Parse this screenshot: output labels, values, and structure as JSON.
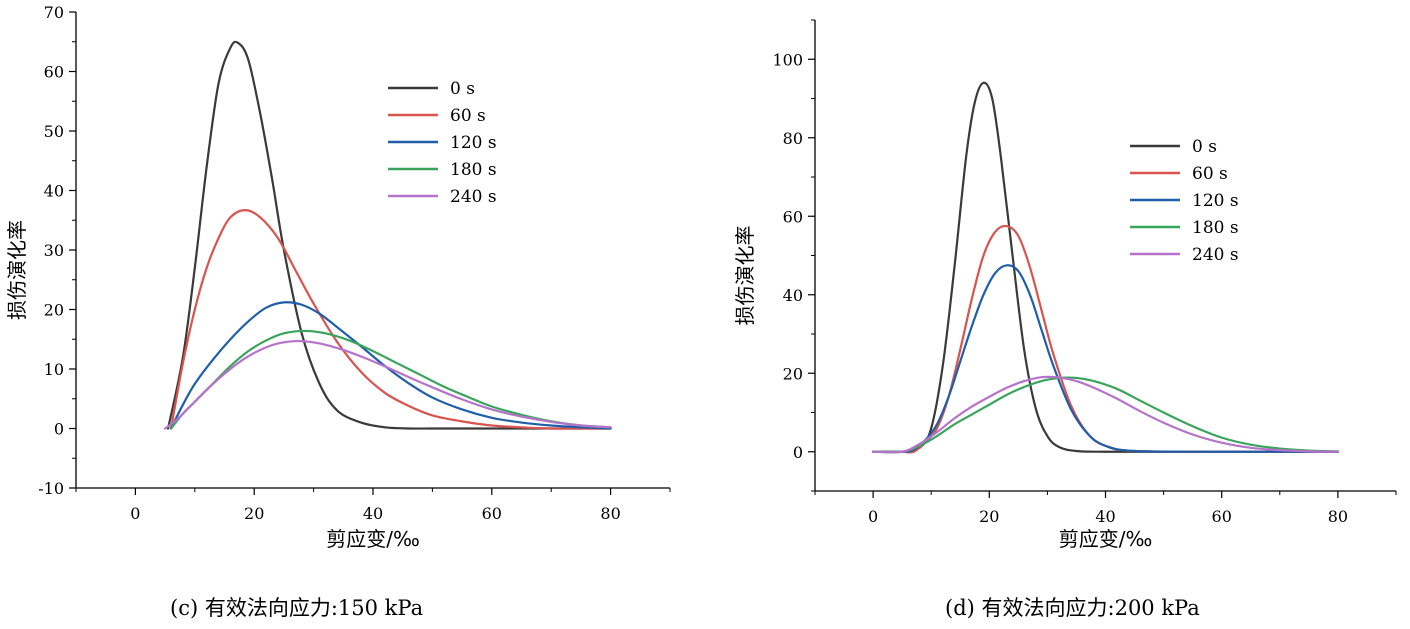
{
  "captions": {
    "c": "(c) 有效法向应力:150 kPa",
    "d": "(d) 有效法向应力:200 kPa"
  },
  "chart_data": [
    {
      "type": "line",
      "panel": "c",
      "xlabel": "剪应变/‰",
      "ylabel": "损伤演化率",
      "xlim": [
        -10,
        90
      ],
      "ylim": [
        -10,
        70
      ],
      "xticks": [
        0,
        20,
        40,
        60,
        80
      ],
      "yticks": [
        -10,
        0,
        10,
        20,
        30,
        40,
        50,
        60,
        70
      ],
      "grid": false,
      "legend_position": "top-right",
      "series": [
        {
          "name": "0 s",
          "color": "#3a3a3a",
          "x": [
            5.5,
            8,
            10,
            12,
            14,
            16,
            17.3,
            19,
            21,
            23,
            25,
            28,
            31,
            34,
            38,
            42,
            46,
            50,
            60,
            70,
            80
          ],
          "y": [
            0,
            12,
            27,
            44,
            58,
            64,
            64.8,
            62,
            53,
            42,
            30,
            16,
            7.5,
            3,
            1,
            0.2,
            0,
            0,
            0,
            0,
            0
          ]
        },
        {
          "name": "60 s",
          "color": "#d9534f",
          "x": [
            6,
            8,
            10,
            12,
            14,
            16,
            18.5,
            21,
            24,
            27,
            30,
            34,
            38,
            42,
            46,
            50,
            55,
            60,
            65,
            70,
            80
          ],
          "y": [
            0,
            11,
            20,
            27,
            32,
            35.5,
            36.7,
            35.5,
            32,
            26.5,
            21,
            14.5,
            9.5,
            6,
            3.8,
            2.2,
            1.2,
            0.5,
            0.2,
            0,
            0
          ]
        },
        {
          "name": "120 s",
          "color": "#1f5ea8",
          "x": [
            6,
            8,
            10,
            13,
            16,
            19,
            22,
            25,
            28,
            31,
            34,
            38,
            42,
            46,
            50,
            55,
            60,
            65,
            70,
            75,
            80
          ],
          "y": [
            0,
            4,
            7.5,
            11.5,
            15,
            18,
            20.3,
            21.2,
            20.8,
            19.3,
            17,
            13.8,
            10.5,
            7.6,
            5.2,
            3.2,
            1.8,
            1,
            0.5,
            0.2,
            0
          ]
        },
        {
          "name": "180 s",
          "color": "#3aa35c",
          "x": [
            6,
            8,
            10,
            13,
            16,
            19,
            22,
            25,
            28.5,
            32,
            36,
            40,
            44,
            48,
            52,
            56,
            60,
            65,
            70,
            75,
            80
          ],
          "y": [
            0,
            2.5,
            4.5,
            7.5,
            10.5,
            13,
            14.8,
            16,
            16.4,
            16,
            14.8,
            13,
            11,
            9,
            7,
            5.3,
            3.7,
            2.3,
            1.2,
            0.5,
            0.2
          ]
        },
        {
          "name": "240 s",
          "color": "#b673cc",
          "x": [
            5,
            7,
            9,
            12,
            15,
            18,
            21,
            24,
            27.5,
            31,
            35,
            39,
            43,
            47,
            51,
            55,
            60,
            65,
            70,
            75,
            80
          ],
          "y": [
            0,
            1.5,
            3.5,
            6.5,
            9.2,
            11.5,
            13.2,
            14.3,
            14.7,
            14.3,
            13.2,
            11.7,
            10,
            8.2,
            6.5,
            4.9,
            3.2,
            2,
            1.1,
            0.5,
            0.2
          ]
        }
      ]
    },
    {
      "type": "line",
      "panel": "d",
      "xlabel": "剪应变/‰",
      "ylabel": "损伤演化率",
      "xlim": [
        -10,
        90
      ],
      "ylim": [
        -10,
        110
      ],
      "xticks": [
        0,
        20,
        40,
        60,
        80
      ],
      "yticks": [
        0,
        20,
        40,
        60,
        80,
        100
      ],
      "grid": false,
      "legend_position": "top-right",
      "series": [
        {
          "name": "0 s",
          "color": "#3a3a3a",
          "x": [
            0,
            5,
            8,
            10,
            12,
            14,
            16,
            17.5,
            19,
            20.5,
            22,
            24,
            26,
            28,
            30,
            32,
            35,
            40,
            60,
            80
          ],
          "y": [
            0,
            0,
            1,
            6,
            22,
            47,
            75,
            89,
            94,
            90,
            75,
            50,
            26,
            11,
            4,
            1.2,
            0.2,
            0,
            0,
            0
          ]
        },
        {
          "name": "60 s",
          "color": "#d9534f",
          "x": [
            0,
            5,
            7,
            9,
            11,
            13,
            15,
            17,
            19,
            21,
            23,
            25,
            27,
            29,
            31,
            34,
            37,
            40,
            45,
            60,
            80
          ],
          "y": [
            0,
            0,
            0,
            2.5,
            6,
            14,
            26,
            39,
            50,
            56,
            57.5,
            55,
            47,
            36,
            25,
            12,
            4.5,
            1.5,
            0.2,
            0,
            0
          ]
        },
        {
          "name": "120 s",
          "color": "#1f5ea8",
          "x": [
            0,
            5,
            7,
            9,
            11,
            13,
            15,
            17,
            19,
            21,
            23,
            25,
            27,
            29,
            31,
            34,
            37,
            40,
            45,
            60,
            80
          ],
          "y": [
            0,
            0,
            0.5,
            3,
            7,
            14,
            23,
            32,
            40,
            45.5,
            47.5,
            46,
            40,
            31,
            22,
            11,
            4.5,
            1.5,
            0.2,
            0,
            0
          ]
        },
        {
          "name": "180 s",
          "color": "#3aa35c",
          "x": [
            0,
            5,
            8,
            11,
            14,
            17,
            20,
            23,
            26,
            29,
            32,
            35,
            38,
            42,
            46,
            50,
            55,
            60,
            65,
            70,
            75,
            80
          ],
          "y": [
            0,
            0,
            1.5,
            4,
            7,
            9.5,
            12,
            14.5,
            16.5,
            18,
            18.8,
            18.8,
            18,
            16,
            13,
            10,
            6.5,
            3.6,
            1.8,
            0.8,
            0.3,
            0.1
          ]
        },
        {
          "name": "240 s",
          "color": "#b673cc",
          "x": [
            0,
            5,
            8,
            11,
            14,
            17,
            20,
            23,
            26,
            29,
            32,
            35,
            38,
            42,
            46,
            50,
            55,
            60,
            65,
            70,
            75,
            80
          ],
          "y": [
            0,
            0,
            2,
            5,
            8.5,
            11.5,
            14,
            16.3,
            18,
            19,
            18.9,
            18,
            16.3,
            13.5,
            10.3,
            7.4,
            4.4,
            2.3,
            1,
            0.4,
            0.1,
            0
          ]
        }
      ]
    }
  ]
}
